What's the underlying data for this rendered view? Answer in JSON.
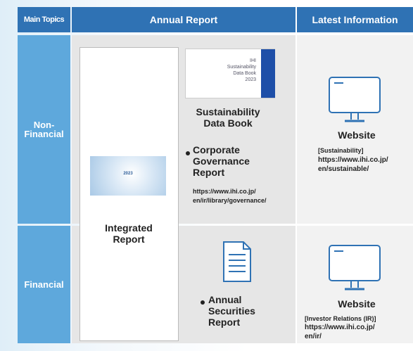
{
  "header": {
    "main_topics": "Main Topics",
    "annual_report": "Annual Report",
    "latest_information": "Latest Information"
  },
  "rows": {
    "non_financial": "Non-\nFinancial",
    "financial": "Financial"
  },
  "integrated_report": {
    "cover_year": "2023",
    "label": "Integrated\nReport"
  },
  "sustainability_data_book": {
    "cover_text": "IHI\nSustainability\nData Book\n2023",
    "label": "Sustainability\nData Book"
  },
  "corporate_governance": {
    "label": "Corporate\nGovernance\nReport",
    "url": "https://www.ihi.co.jp/\nen/ir/library/governance/"
  },
  "annual_securities": {
    "label": "Annual\nSecurities\nReport"
  },
  "latest": [
    {
      "title": "Website",
      "topic": "[Sustainability]",
      "url": "https://www.ihi.co.jp/\nen/sustainable/"
    },
    {
      "title": "Website",
      "topic": "[Investor Relations (IR)]",
      "url": "https://www.ihi.co.jp/\nen/ir/"
    }
  ]
}
